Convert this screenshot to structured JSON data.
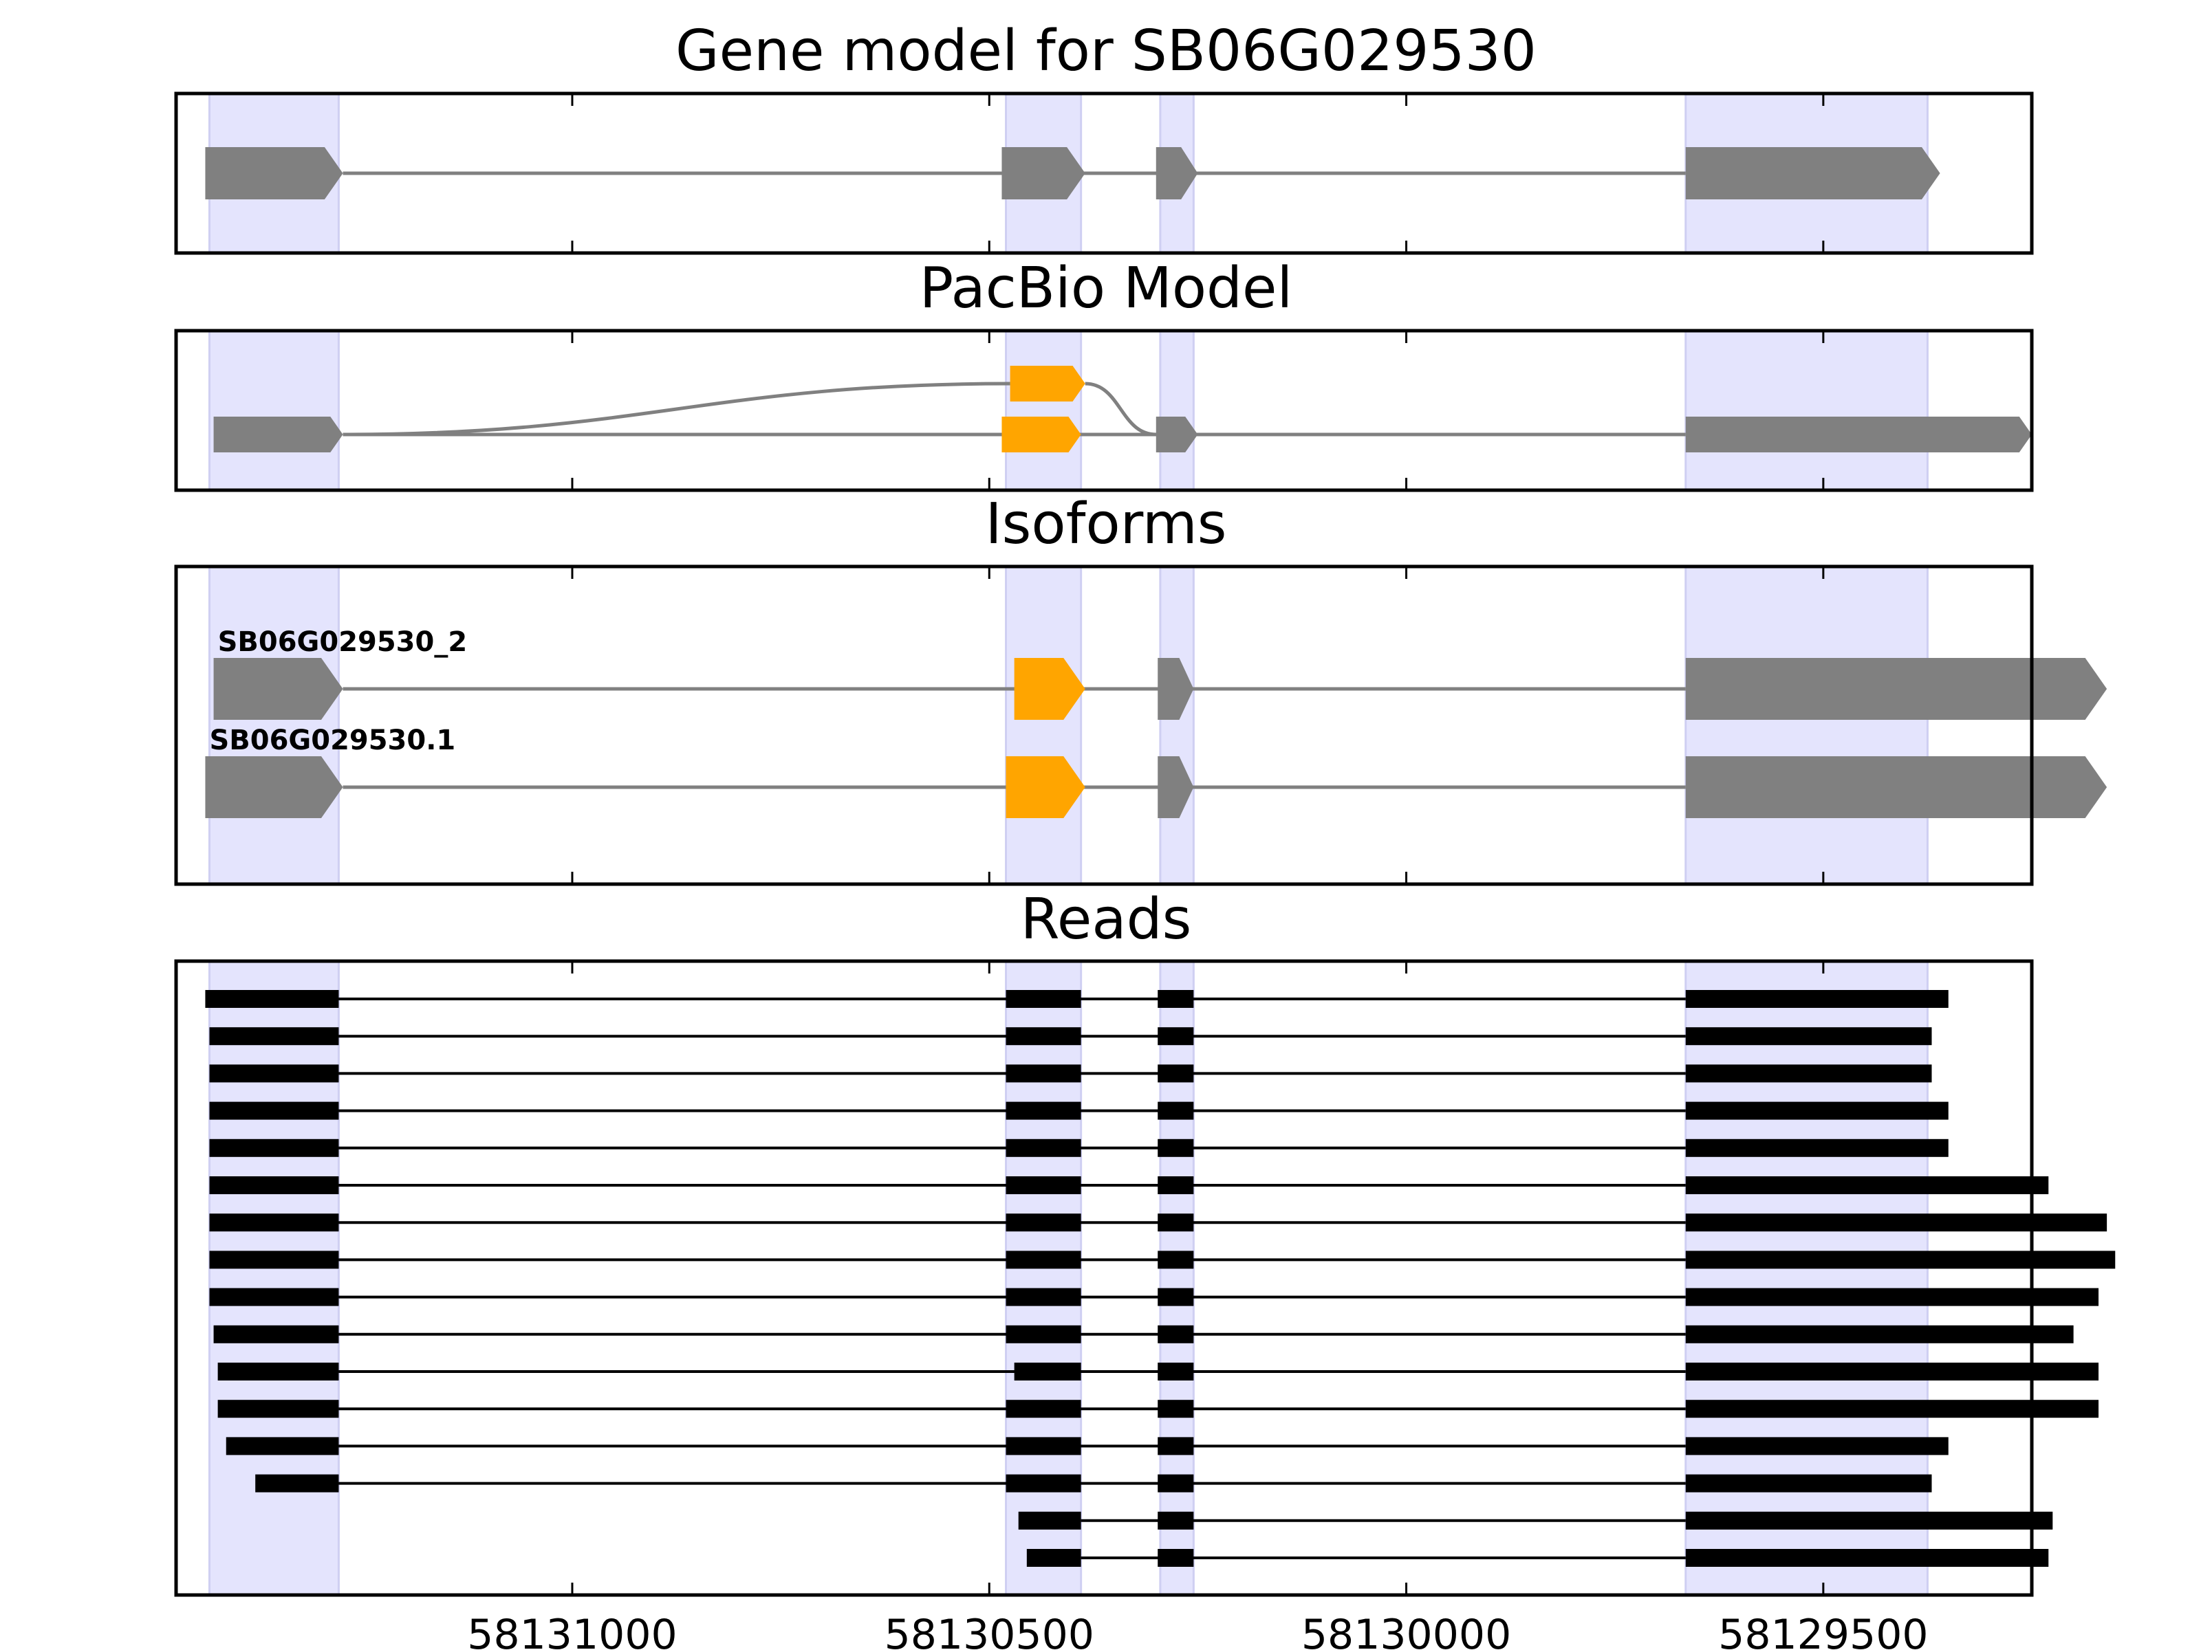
{
  "panels": {
    "gene_title": "Gene model for SB06G029530",
    "pacbio_title": "PacBio Model",
    "isoforms_title": "Isoforms",
    "reads_title": "Reads"
  },
  "colors": {
    "exon": "#808080",
    "alt_exon": "#FFA500",
    "read": "#000000",
    "highlight": "#E4E4FD",
    "intron": "#808080"
  },
  "chart_data": {
    "type": "gene-structure",
    "axis": {
      "reversed": true,
      "xlim": [
        58131475,
        58129250
      ],
      "ticks": [
        58131000,
        58130500,
        58130000,
        58129500
      ],
      "tick_labels": [
        "58131000",
        "58130500",
        "58130000",
        "58129500"
      ]
    },
    "highlight_regions": [
      [
        58131435,
        58131280
      ],
      [
        58130480,
        58130390
      ],
      [
        58130295,
        58130255
      ],
      [
        58129665,
        58129375
      ]
    ],
    "gene_model": {
      "exons": [
        [
          58131440,
          58131275
        ],
        [
          58130485,
          58130385
        ],
        [
          58130300,
          58130250
        ],
        [
          58129665,
          58129360
        ]
      ]
    },
    "pacbio_model": {
      "paths": [
        {
          "exons": [
            [
              58131430,
              58131275
            ],
            [
              58130485,
              58130390
            ],
            [
              58130300,
              58130250
            ],
            [
              58129665,
              58129250
            ]
          ],
          "alt": [
            1
          ]
        },
        {
          "exons": [
            [
              58130475,
              58130385
            ]
          ],
          "alt": [
            0
          ],
          "upper": true
        }
      ]
    },
    "isoforms": [
      {
        "label": "SB06G029530_2",
        "exons": [
          [
            58131430,
            58131275
          ],
          [
            58130470,
            58130385
          ],
          [
            58130298,
            58130255
          ],
          [
            58129665,
            58129160
          ]
        ],
        "alt": [
          1
        ]
      },
      {
        "label": "SB06G029530.1",
        "exons": [
          [
            58131440,
            58131275
          ],
          [
            58130480,
            58130385
          ],
          [
            58130298,
            58130255
          ],
          [
            58129665,
            58129160
          ]
        ],
        "alt": [
          1
        ]
      }
    ],
    "reads": [
      {
        "exons": [
          [
            58131440,
            58131280
          ],
          [
            58130480,
            58130390
          ],
          [
            58130298,
            58130255
          ],
          [
            58129665,
            58129350
          ]
        ]
      },
      {
        "exons": [
          [
            58131435,
            58131280
          ],
          [
            58130480,
            58130390
          ],
          [
            58130298,
            58130255
          ],
          [
            58129665,
            58129370
          ]
        ]
      },
      {
        "exons": [
          [
            58131435,
            58131280
          ],
          [
            58130480,
            58130390
          ],
          [
            58130298,
            58130255
          ],
          [
            58129665,
            58129370
          ]
        ]
      },
      {
        "exons": [
          [
            58131435,
            58131280
          ],
          [
            58130480,
            58130390
          ],
          [
            58130298,
            58130255
          ],
          [
            58129665,
            58129350
          ]
        ]
      },
      {
        "exons": [
          [
            58131435,
            58131280
          ],
          [
            58130480,
            58130390
          ],
          [
            58130298,
            58130255
          ],
          [
            58129665,
            58129350
          ]
        ]
      },
      {
        "exons": [
          [
            58131435,
            58131280
          ],
          [
            58130480,
            58130390
          ],
          [
            58130298,
            58130255
          ],
          [
            58129665,
            58129230
          ]
        ]
      },
      {
        "exons": [
          [
            58131435,
            58131280
          ],
          [
            58130480,
            58130390
          ],
          [
            58130298,
            58130255
          ],
          [
            58129665,
            58129160
          ]
        ]
      },
      {
        "exons": [
          [
            58131435,
            58131280
          ],
          [
            58130480,
            58130390
          ],
          [
            58130298,
            58130255
          ],
          [
            58129665,
            58129150
          ]
        ]
      },
      {
        "exons": [
          [
            58131435,
            58131280
          ],
          [
            58130480,
            58130390
          ],
          [
            58130298,
            58130255
          ],
          [
            58129665,
            58129170
          ]
        ]
      },
      {
        "exons": [
          [
            58131430,
            58131280
          ],
          [
            58130480,
            58130390
          ],
          [
            58130298,
            58130255
          ],
          [
            58129665,
            58129200
          ]
        ]
      },
      {
        "exons": [
          [
            58131425,
            58131280
          ],
          [
            58130470,
            58130390
          ],
          [
            58130298,
            58130255
          ],
          [
            58129665,
            58129170
          ]
        ]
      },
      {
        "exons": [
          [
            58131425,
            58131280
          ],
          [
            58130480,
            58130390
          ],
          [
            58130298,
            58130255
          ],
          [
            58129665,
            58129170
          ]
        ]
      },
      {
        "exons": [
          [
            58131415,
            58131280
          ],
          [
            58130480,
            58130390
          ],
          [
            58130298,
            58130255
          ],
          [
            58129665,
            58129350
          ]
        ]
      },
      {
        "exons": [
          [
            58131380,
            58131280
          ],
          [
            58130480,
            58130390
          ],
          [
            58130298,
            58130255
          ],
          [
            58129665,
            58129370
          ]
        ]
      },
      {
        "exons": [
          [
            58130465,
            58130390
          ],
          [
            58130298,
            58130255
          ],
          [
            58129665,
            58129225
          ]
        ]
      },
      {
        "exons": [
          [
            58130455,
            58130390
          ],
          [
            58130298,
            58130255
          ],
          [
            58129665,
            58129230
          ]
        ]
      }
    ]
  }
}
